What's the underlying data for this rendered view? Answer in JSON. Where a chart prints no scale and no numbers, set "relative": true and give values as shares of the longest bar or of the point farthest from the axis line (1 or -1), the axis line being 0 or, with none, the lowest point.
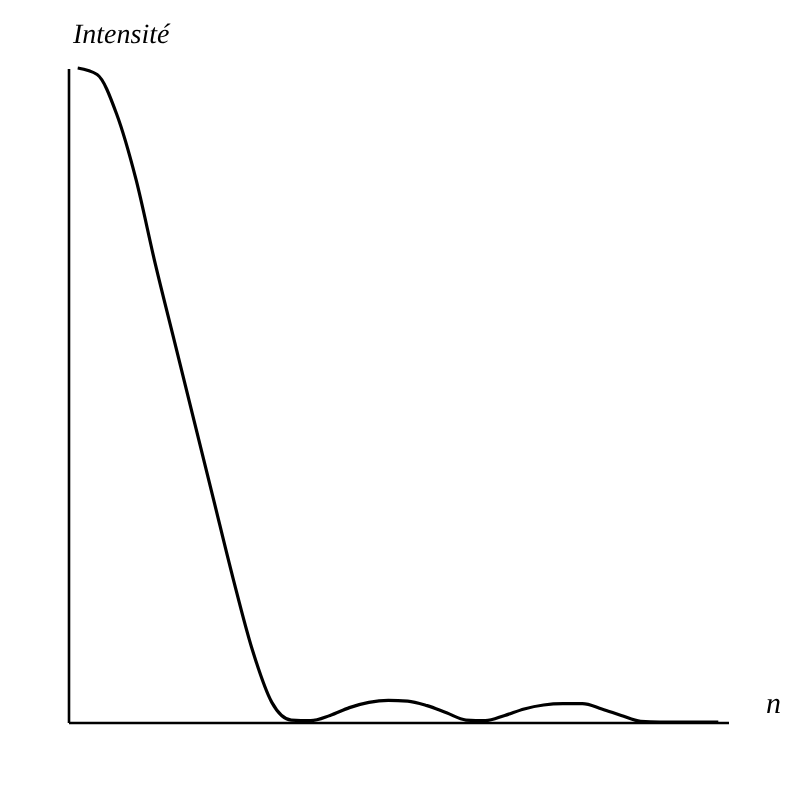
{
  "chart_data": {
    "type": "line",
    "xlabel": "n",
    "ylabel": "Intensité",
    "relative": true,
    "categories": [
      null,
      null,
      null,
      null,
      null,
      null,
      null,
      null,
      null,
      null,
      null,
      null,
      null,
      null,
      null,
      null,
      null,
      null,
      null,
      null,
      null,
      null,
      null,
      null,
      null,
      null,
      null,
      null,
      null,
      null,
      null,
      null,
      null,
      null
    ],
    "series": [
      {
        "color": "#000000",
        "values": [
          1.0,
          0.99,
          0.93,
          0.83,
          0.7,
          0.58,
          0.46,
          0.34,
          0.22,
          0.11,
          0.03,
          0.003,
          0.002,
          0.01,
          0.022,
          0.03,
          0.033,
          0.032,
          0.025,
          0.014,
          0.003,
          0.002,
          0.01,
          0.02,
          0.026,
          0.028,
          0.028,
          0.02,
          0.01,
          0.001,
          0,
          0,
          0,
          0
        ]
      }
    ],
    "line_style": "solid"
  }
}
